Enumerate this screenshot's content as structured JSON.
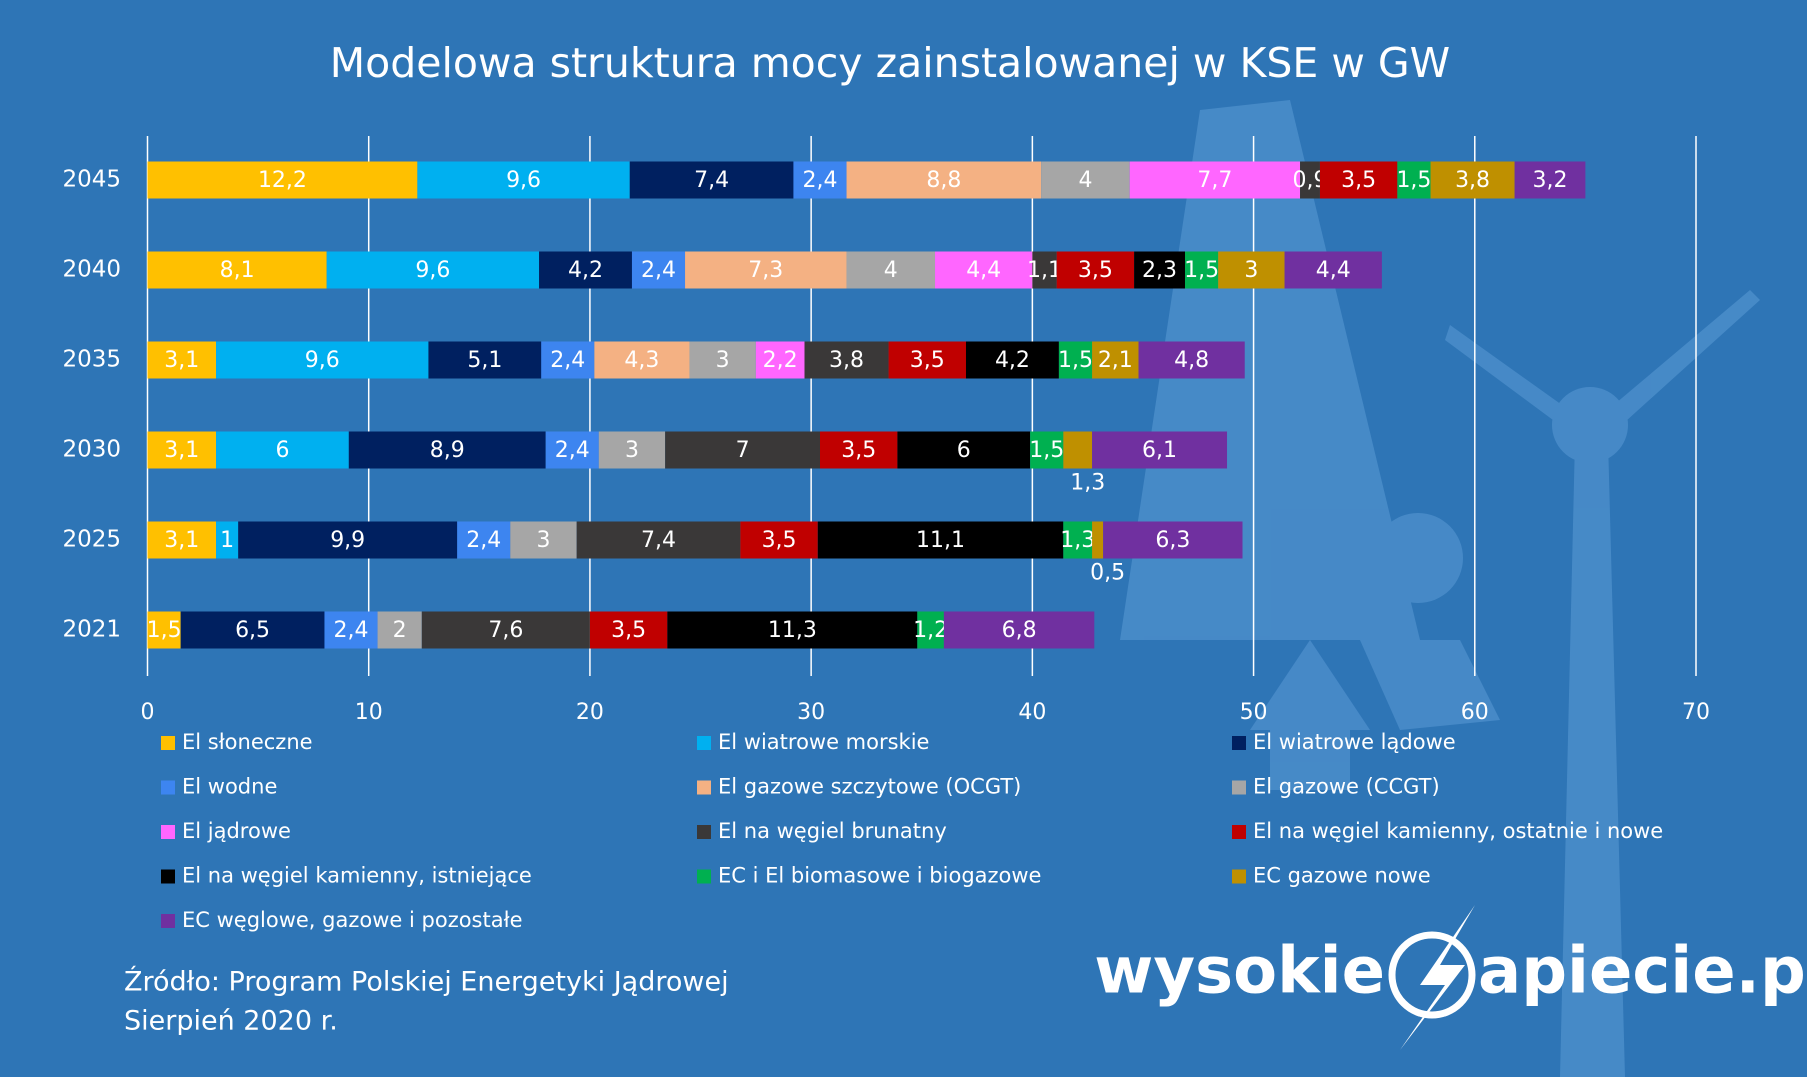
{
  "chart_data": {
    "type": "stacked-bar-horizontal",
    "title": "Modelowa struktura mocy zainstalowanej w KSE w GW",
    "categories": [
      "2045",
      "2040",
      "2035",
      "2030",
      "2025",
      "2021"
    ],
    "xlim": [
      0,
      70
    ],
    "xticks": [
      0,
      10,
      20,
      30,
      40,
      50,
      60,
      70
    ],
    "grid": true,
    "legend": "bottom",
    "series": [
      {
        "name": "El słoneczne",
        "color": "#ffc000",
        "values": [
          12.2,
          8.1,
          3.1,
          3.1,
          3.1,
          1.5
        ],
        "value_labels": [
          "12,2",
          "8,1",
          "3,1",
          "3,1",
          "3,1",
          "1,5"
        ]
      },
      {
        "name": "El wiatrowe morskie",
        "color": "#00b0f0",
        "values": [
          9.6,
          9.6,
          9.6,
          6,
          1,
          null
        ],
        "value_labels": [
          "9,6",
          "9,6",
          "9,6",
          "6",
          "1",
          null
        ]
      },
      {
        "name": "El wiatrowe lądowe",
        "color": "#002060",
        "values": [
          7.4,
          4.2,
          5.1,
          8.9,
          9.9,
          6.5
        ],
        "value_labels": [
          "7,4",
          "4,2",
          "5,1",
          "8,9",
          "9,9",
          "6,5"
        ]
      },
      {
        "name": "El wodne",
        "color": "#3d85f0",
        "values": [
          2.4,
          2.4,
          2.4,
          2.4,
          2.4,
          2.4
        ],
        "value_labels": [
          "2,4",
          "2,4",
          "2,4",
          "2,4",
          "2,4",
          "2,4"
        ]
      },
      {
        "name": "El gazowe szczytowe (OCGT)",
        "color": "#f4b183",
        "values": [
          8.8,
          7.3,
          4.3,
          null,
          null,
          null
        ],
        "value_labels": [
          "8,8",
          "7,3",
          "4,3",
          null,
          null,
          null
        ]
      },
      {
        "name": "El gazowe (CCGT)",
        "color": "#a6a6a6",
        "values": [
          4,
          4,
          3,
          3,
          3,
          2
        ],
        "value_labels": [
          "4",
          "4",
          "3",
          "3",
          "3",
          "2"
        ]
      },
      {
        "name": "El jądrowe",
        "color": "#ff66ff",
        "values": [
          7.7,
          4.4,
          2.2,
          null,
          null,
          null
        ],
        "value_labels": [
          "7,7",
          "4,4",
          "2,2",
          null,
          null,
          null
        ]
      },
      {
        "name": "El na węgiel brunatny",
        "color": "#3a3838",
        "values": [
          0.9,
          1.1,
          3.8,
          7,
          7.4,
          7.6
        ],
        "value_labels": [
          "0,9",
          "1,1",
          "3,8",
          "7",
          "7,4",
          "7,6"
        ]
      },
      {
        "name": "El na węgiel kamienny, ostatnie i nowe",
        "color": "#c00000",
        "values": [
          3.5,
          3.5,
          3.5,
          3.5,
          3.5,
          3.5
        ],
        "value_labels": [
          "3,5",
          "3,5",
          "3,5",
          "3,5",
          "3,5",
          "3,5"
        ]
      },
      {
        "name": "El na węgiel kamienny, istniejące",
        "color": "#000000",
        "values": [
          null,
          2.3,
          4.2,
          6,
          11.1,
          11.3
        ],
        "value_labels": [
          null,
          "2,3",
          "4,2",
          "6",
          "11,1",
          "11,3"
        ]
      },
      {
        "name": "EC i El biomasowe i biogazowe",
        "color": "#00b050",
        "values": [
          1.5,
          1.5,
          1.5,
          1.5,
          1.3,
          1.2
        ],
        "value_labels": [
          "1,5",
          "1,5",
          "1,5",
          "1,5",
          "1,3",
          "1,2"
        ]
      },
      {
        "name": "EC gazowe nowe",
        "color": "#bf9000",
        "values": [
          3.8,
          3,
          2.1,
          1.3,
          0.5,
          null
        ],
        "value_labels": [
          "3,8",
          "3",
          "2,1",
          "1,3",
          "0,5",
          null
        ]
      },
      {
        "name": "EC węglowe, gazowe i pozostałe",
        "color": "#7030a0",
        "values": [
          3.2,
          4.4,
          4.8,
          6.1,
          6.3,
          6.8
        ],
        "value_labels": [
          "3,2",
          "4,4",
          "4,8",
          "6,1",
          "6,3",
          "6,8"
        ]
      }
    ],
    "source": [
      "Źródło: Program Polskiej Energetyki Jądrowej",
      "Sierpień 2020 r."
    ],
    "logo": [
      "wysokie",
      "apiecie.pl"
    ]
  }
}
